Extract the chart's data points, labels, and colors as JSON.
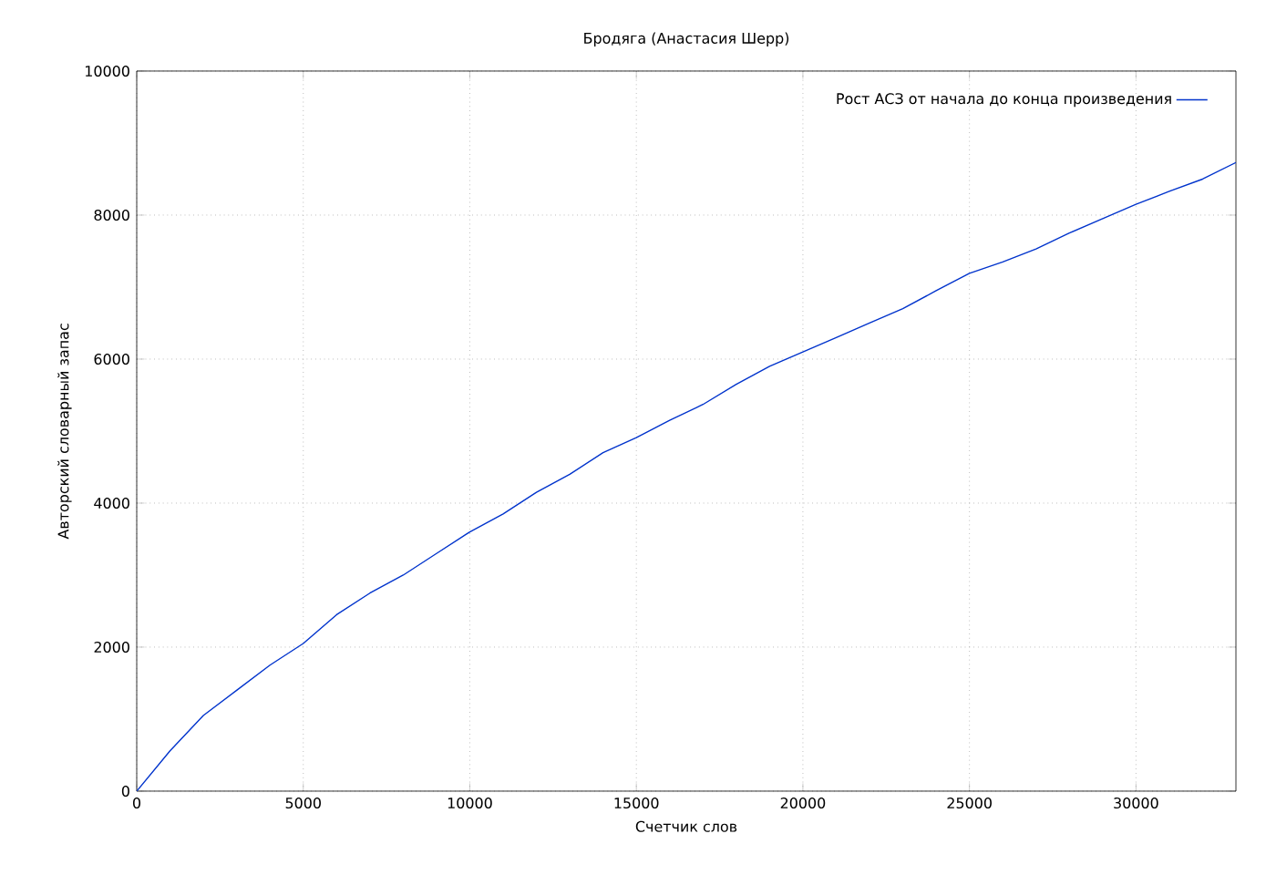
{
  "chart_data": {
    "type": "line",
    "title": "Бродяга (Анастасия Шерр)",
    "xlabel": "Счетчик слов",
    "ylabel": "Авторский словарный запас",
    "x": [
      0,
      1000,
      2000,
      3000,
      4000,
      5000,
      6000,
      7000,
      8000,
      9000,
      10000,
      11000,
      12000,
      13000,
      14000,
      15000,
      16000,
      17000,
      18000,
      19000,
      20000,
      21000,
      22000,
      23000,
      24000,
      25000,
      26000,
      27000,
      28000,
      29000,
      30000,
      31000,
      32000,
      33000
    ],
    "series": [
      {
        "name": "Рост АСЗ от начала до конца произведения",
        "color": "#0033cc",
        "values": [
          0,
          560,
          1050,
          1400,
          1750,
          2050,
          2450,
          2750,
          3000,
          3300,
          3600,
          3850,
          4150,
          4400,
          4700,
          4910,
          5150,
          5370,
          5650,
          5900,
          6100,
          6300,
          6500,
          6700,
          6950,
          7190,
          7350,
          7530,
          7750,
          7950,
          8150,
          8330,
          8500,
          8730
        ]
      }
    ],
    "xlim": [
      0,
      33000
    ],
    "ylim": [
      0,
      10000
    ],
    "xticks": [
      0,
      5000,
      10000,
      15000,
      20000,
      25000,
      30000
    ],
    "yticks": [
      0,
      2000,
      4000,
      6000,
      8000,
      10000
    ],
    "grid": true,
    "legend": "top right",
    "marker": "none",
    "line_style": "solid"
  }
}
